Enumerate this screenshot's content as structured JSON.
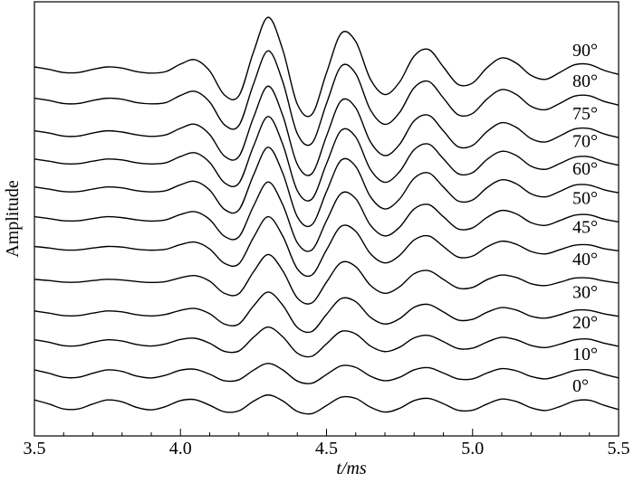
{
  "chart_data": {
    "type": "line",
    "xlabel": "t/ms",
    "ylabel": "Amplitude",
    "xlim": [
      3.5,
      5.5
    ],
    "ylim": [
      0,
      14
    ],
    "xticks": [
      3.5,
      {
        "value": 4,
        "label": "4.0"
      },
      4.5,
      {
        "value": 5,
        "label": "5.0"
      },
      5.5
    ],
    "xminorticks": [
      3.6,
      3.7,
      3.8,
      3.9,
      4.1,
      4.2,
      4.3,
      4.4,
      4.6,
      4.7,
      4.8,
      4.9,
      5.1,
      5.2,
      5.3,
      5.4
    ],
    "x": [
      3.5,
      3.55,
      3.6,
      3.65,
      3.7,
      3.75,
      3.8,
      3.85,
      3.9,
      3.95,
      4,
      4.05,
      4.1,
      4.15,
      4.2,
      4.25,
      4.3,
      4.35,
      4.4,
      4.45,
      4.5,
      4.55,
      4.6,
      4.65,
      4.7,
      4.75,
      4.8,
      4.85,
      4.9,
      4.95,
      5,
      5.05,
      5.1,
      5.15,
      5.2,
      5.25,
      5.3,
      5.35,
      5.4,
      5.45,
      5.5
    ],
    "series": [
      {
        "name": "90°",
        "color": "#000000",
        "values": [
          11.9,
          11.82,
          11.72,
          11.72,
          11.82,
          11.9,
          11.86,
          11.75,
          11.7,
          11.75,
          11.99,
          12.13,
          11.77,
          11.0,
          10.97,
          12.38,
          13.5,
          12.46,
          10.7,
          10.37,
          11.71,
          12.98,
          12.72,
          11.51,
          11.01,
          11.41,
          12.25,
          12.46,
          11.9,
          11.34,
          11.38,
          11.88,
          12.19,
          12.02,
          11.63,
          11.5,
          11.73,
          11.97,
          11.98,
          11.79,
          11.66
        ]
      },
      {
        "name": "80°",
        "color": "#000000",
        "values": [
          10.89,
          10.82,
          10.72,
          10.72,
          10.82,
          10.89,
          10.86,
          10.75,
          10.71,
          10.75,
          10.98,
          11.11,
          10.77,
          10.04,
          10.01,
          11.35,
          12.42,
          11.43,
          9.75,
          9.44,
          10.72,
          11.92,
          11.68,
          10.52,
          10.05,
          10.43,
          11.23,
          11.43,
          10.9,
          10.36,
          10.4,
          10.87,
          11.17,
          11.01,
          10.63,
          10.52,
          10.73,
          10.96,
          10.97,
          10.79,
          10.67
        ]
      },
      {
        "name": "75°",
        "color": "#000000",
        "values": [
          9.84,
          9.77,
          9.67,
          9.67,
          9.77,
          9.84,
          9.8,
          9.71,
          9.66,
          9.71,
          9.92,
          10.05,
          9.72,
          9.03,
          9.01,
          10.27,
          11.28,
          10.34,
          8.76,
          8.46,
          9.67,
          10.81,
          10.58,
          9.49,
          9.04,
          9.4,
          10.16,
          10.34,
          9.84,
          9.33,
          9.37,
          9.82,
          10.1,
          9.95,
          9.59,
          9.48,
          9.68,
          9.9,
          9.91,
          9.74,
          9.62
        ]
      },
      {
        "name": "70°",
        "color": "#000000",
        "values": [
          8.93,
          8.86,
          8.78,
          8.78,
          8.86,
          8.93,
          8.9,
          8.81,
          8.77,
          8.81,
          9.01,
          9.13,
          8.82,
          8.17,
          8.15,
          9.34,
          10.3,
          9.41,
          7.91,
          7.64,
          8.78,
          9.85,
          9.64,
          8.6,
          8.18,
          8.52,
          9.23,
          9.41,
          8.94,
          8.46,
          8.49,
          8.92,
          9.18,
          9.04,
          8.7,
          8.6,
          8.79,
          8.99,
          9.0,
          8.84,
          8.73
        ]
      },
      {
        "name": "60°",
        "color": "#000000",
        "values": [
          8.03,
          7.96,
          7.88,
          7.88,
          7.96,
          8.03,
          8.0,
          7.91,
          7.87,
          7.91,
          8.1,
          8.21,
          7.93,
          7.31,
          7.29,
          8.41,
          9.31,
          8.48,
          7.07,
          6.81,
          7.88,
          8.89,
          8.69,
          7.72,
          7.32,
          7.64,
          8.31,
          8.48,
          8.03,
          7.58,
          7.61,
          8.01,
          8.26,
          8.13,
          7.81,
          7.71,
          7.89,
          8.09,
          8.09,
          7.94,
          7.84
        ]
      },
      {
        "name": "50°",
        "color": "#000000",
        "values": [
          7.07,
          7.01,
          6.94,
          6.94,
          7.01,
          7.07,
          7.04,
          6.97,
          6.93,
          6.97,
          7.14,
          7.23,
          6.98,
          6.44,
          6.42,
          7.41,
          8.19,
          7.46,
          6.23,
          6.0,
          6.94,
          7.82,
          7.65,
          6.8,
          6.45,
          6.73,
          7.32,
          7.46,
          7.07,
          6.68,
          6.71,
          7.05,
          7.27,
          7.16,
          6.88,
          6.79,
          6.95,
          7.12,
          7.13,
          6.99,
          6.9
        ]
      },
      {
        "name": "45°",
        "color": "#000000",
        "values": [
          6.11,
          6.06,
          6.0,
          6.0,
          6.06,
          6.11,
          6.09,
          6.02,
          5.99,
          6.02,
          6.17,
          6.25,
          6.03,
          5.57,
          5.55,
          6.4,
          7.07,
          6.45,
          5.39,
          5.19,
          6.0,
          6.76,
          6.6,
          5.88,
          5.58,
          5.82,
          6.32,
          6.45,
          6.11,
          5.77,
          5.8,
          6.1,
          6.28,
          6.18,
          5.95,
          5.87,
          6.01,
          6.15,
          6.16,
          6.04,
          5.97
        ]
      },
      {
        "name": "40°",
        "color": "#000000",
        "values": [
          5.05,
          5.01,
          4.96,
          4.96,
          5.01,
          5.05,
          5.03,
          4.98,
          4.95,
          4.98,
          5.1,
          5.17,
          4.99,
          4.6,
          4.59,
          5.29,
          5.85,
          5.33,
          4.45,
          4.29,
          4.96,
          5.59,
          5.46,
          4.86,
          4.6,
          4.81,
          5.23,
          5.33,
          5.05,
          4.77,
          4.79,
          5.04,
          5.19,
          5.11,
          4.91,
          4.85,
          4.96,
          5.09,
          5.09,
          5.0,
          4.93
        ]
      },
      {
        "name": "30°",
        "color": "#000000",
        "values": [
          4.03,
          3.96,
          3.88,
          3.88,
          3.96,
          4.03,
          4.0,
          3.91,
          3.87,
          3.92,
          4.05,
          4.11,
          3.94,
          3.61,
          3.61,
          4.19,
          4.64,
          4.22,
          3.5,
          3.37,
          3.92,
          4.43,
          4.33,
          3.83,
          3.61,
          3.78,
          4.15,
          4.24,
          4.0,
          3.74,
          3.76,
          3.99,
          4.14,
          4.06,
          3.86,
          3.8,
          3.91,
          4.05,
          4.05,
          3.94,
          3.86
        ]
      },
      {
        "name": "20°",
        "color": "#000000",
        "values": [
          3.1,
          3.02,
          2.91,
          2.91,
          3.02,
          3.1,
          3.06,
          2.95,
          2.9,
          2.97,
          3.11,
          3.15,
          2.99,
          2.73,
          2.74,
          3.18,
          3.51,
          3.2,
          2.67,
          2.57,
          2.97,
          3.37,
          3.29,
          2.9,
          2.72,
          2.86,
          3.16,
          3.24,
          3.04,
          2.82,
          2.83,
          3.03,
          3.18,
          3.1,
          2.92,
          2.85,
          2.96,
          3.1,
          3.12,
          2.99,
          2.89
        ]
      },
      {
        "name": "10°",
        "color": "#000000",
        "values": [
          2.13,
          2.02,
          1.89,
          1.89,
          2.02,
          2.13,
          2.08,
          1.93,
          1.87,
          1.96,
          2.12,
          2.15,
          1.99,
          1.78,
          1.81,
          2.12,
          2.34,
          2.13,
          1.77,
          1.7,
          1.98,
          2.26,
          2.21,
          1.93,
          1.78,
          1.89,
          2.13,
          2.2,
          2.03,
          1.84,
          1.84,
          2.03,
          2.17,
          2.1,
          1.92,
          1.84,
          1.96,
          2.11,
          2.13,
          1.99,
          1.87
        ]
      },
      {
        "name": "0°",
        "color": "#000000",
        "values": [
          1.16,
          1.03,
          0.87,
          0.87,
          1.03,
          1.16,
          1.1,
          0.92,
          0.84,
          0.95,
          1.14,
          1.17,
          0.99,
          0.78,
          0.81,
          1.12,
          1.32,
          1.13,
          0.79,
          0.72,
          0.98,
          1.25,
          1.21,
          0.93,
          0.77,
          0.89,
          1.14,
          1.21,
          1.04,
          0.83,
          0.83,
          1.03,
          1.19,
          1.11,
          0.91,
          0.82,
          0.95,
          1.13,
          1.15,
          0.99,
          0.85
        ]
      }
    ]
  }
}
